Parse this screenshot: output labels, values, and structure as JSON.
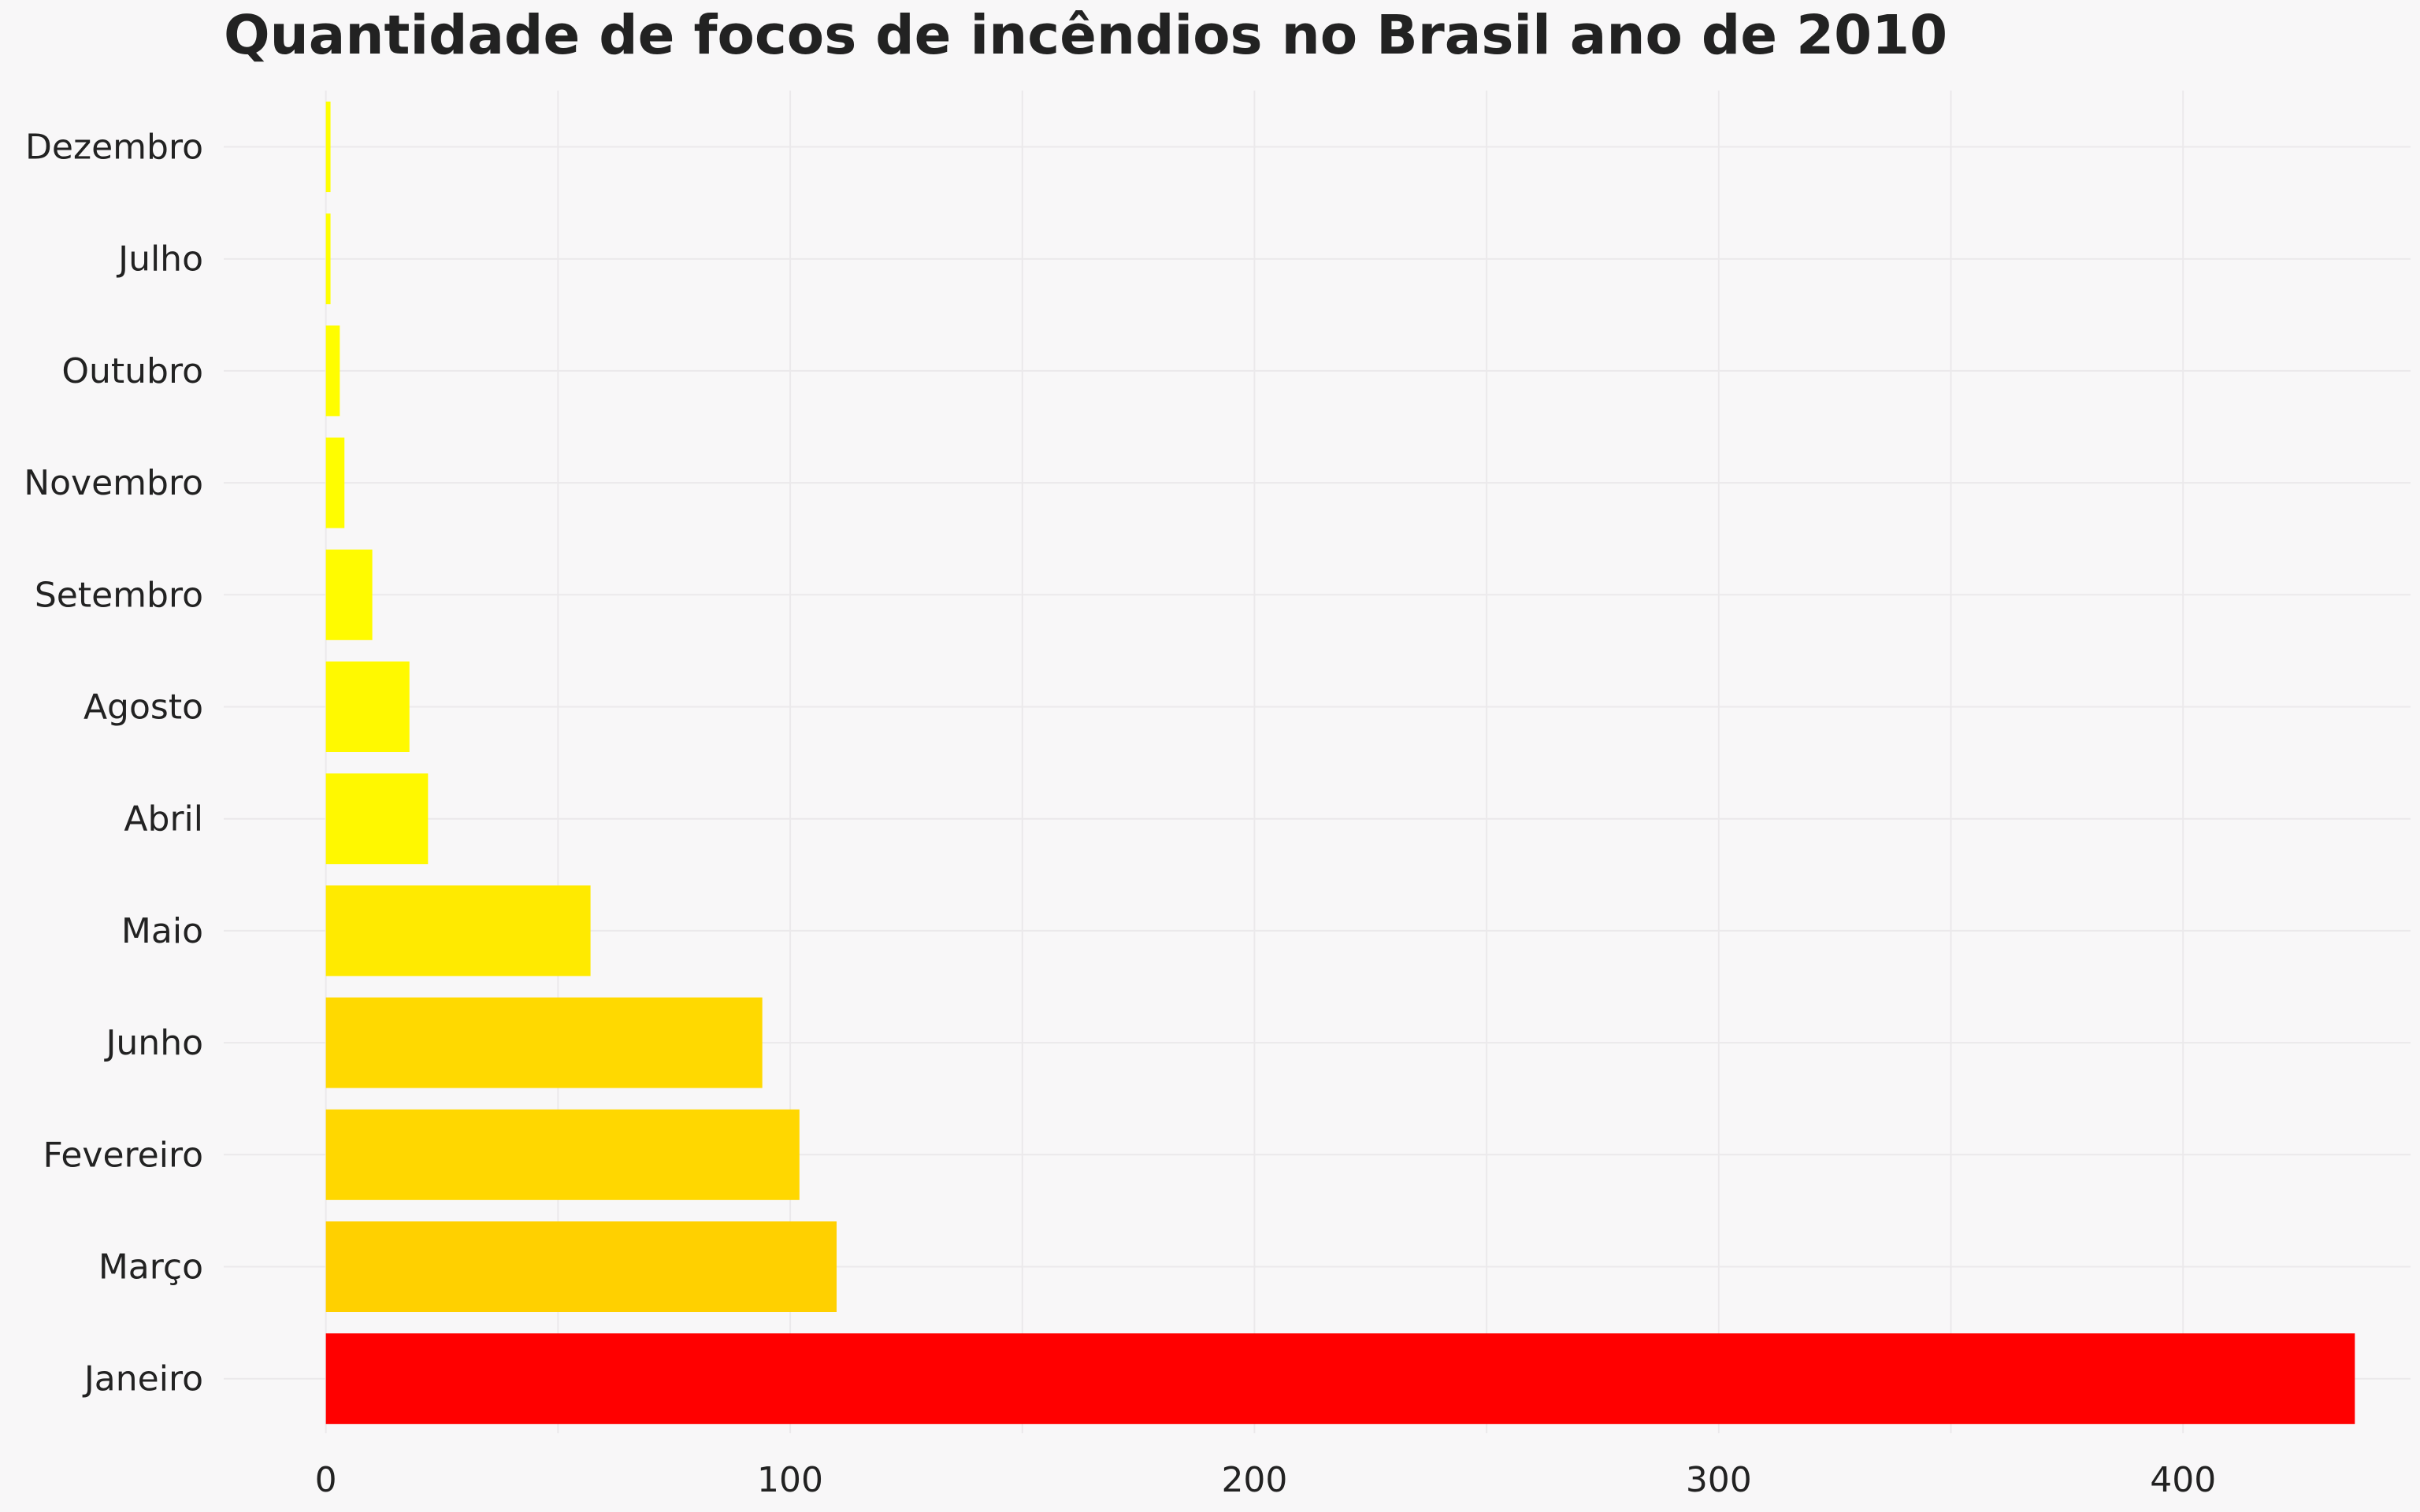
{
  "chart_data": {
    "type": "bar",
    "orientation": "horizontal",
    "title": "Quantidade de focos de incêndios no Brasil ano de 2010",
    "xlabel": "",
    "ylabel": "",
    "categories": [
      "Janeiro",
      "Março",
      "Fevereiro",
      "Junho",
      "Maio",
      "Abril",
      "Agosto",
      "Setembro",
      "Novembro",
      "Outubro",
      "Julho",
      "Dezembro"
    ],
    "values": [
      437,
      110,
      102,
      94,
      57,
      22,
      18,
      10,
      4,
      3,
      1,
      1
    ],
    "colors": [
      "#ff0000",
      "#ffd000",
      "#ffd700",
      "#ffd900",
      "#ffea00",
      "#fff800",
      "#fff900",
      "#fffb00",
      "#fffd00",
      "#fffd00",
      "#ffff00",
      "#ffff00"
    ],
    "xlim": [
      -22,
      449
    ],
    "xticks": [
      0,
      100,
      200,
      300,
      400
    ],
    "xtick_labels": [
      "0",
      "100",
      "200",
      "300",
      "400"
    ],
    "grid": true,
    "legend": "none"
  }
}
